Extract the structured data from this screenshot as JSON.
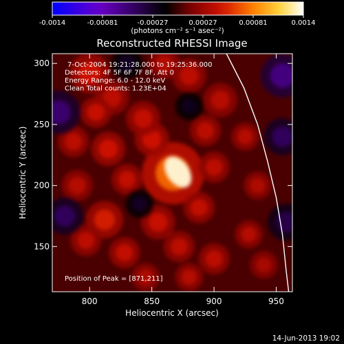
{
  "chart_data": {
    "type": "heatmap",
    "title": "Reconstructed RHESSI Image",
    "xlabel": "Heliocentric X (arcsec)",
    "ylabel": "Heliocentric Y (arcsec)",
    "xlim": [
      770,
      963
    ],
    "ylim": [
      113,
      308
    ],
    "xticks": [
      800,
      850,
      900,
      950
    ],
    "yticks": [
      150,
      200,
      250,
      300
    ],
    "colorbar": {
      "range": [
        -0.0014,
        0.0014
      ],
      "ticks": [
        "-0.0014",
        "-0.00081",
        "-0.00027",
        "0.00027",
        "0.00081",
        "0.0014"
      ],
      "unit_label": "(photons cm⁻² s⁻¹ asec⁻²)",
      "colormap": [
        "#0000ff",
        "#6a00c8",
        "#000000",
        "#7a0000",
        "#d21200",
        "#ff8000",
        "#ffd640",
        "#ffffff"
      ]
    },
    "annotations": [
      "7-Oct-2004 19:21:28.000 to 19:25:36.000",
      "Detectors: 4F 5F 6F 7F 8F, Att 0",
      "Energy Range: 6.0 - 12.0 keV",
      "Clean     Total counts: 1.23E+04"
    ],
    "peak_label": "Position of Peak = [871,211]",
    "peak_position": [
      871,
      211
    ],
    "limb_curve": [
      [
        910,
        308
      ],
      [
        924,
        280
      ],
      [
        935,
        250
      ],
      [
        943,
        220
      ],
      [
        950,
        190
      ],
      [
        955,
        160
      ],
      [
        958,
        130
      ],
      [
        960,
        113
      ]
    ],
    "blobs": [
      {
        "x": 866,
        "y": 213,
        "v": 1.0,
        "r": 10
      },
      {
        "x": 867,
        "y": 210,
        "v": 0.55,
        "r": 20
      },
      {
        "x": 850,
        "y": 238,
        "v": 0.35,
        "r": 11
      },
      {
        "x": 843,
        "y": 255,
        "v": 0.32,
        "r": 11
      },
      {
        "x": 800,
        "y": 292,
        "v": 0.35,
        "r": 13
      },
      {
        "x": 818,
        "y": 272,
        "v": 0.3,
        "r": 11
      },
      {
        "x": 805,
        "y": 260,
        "v": 0.33,
        "r": 10
      },
      {
        "x": 787,
        "y": 236,
        "v": 0.3,
        "r": 10
      },
      {
        "x": 815,
        "y": 230,
        "v": 0.35,
        "r": 11
      },
      {
        "x": 830,
        "y": 205,
        "v": 0.32,
        "r": 10
      },
      {
        "x": 812,
        "y": 172,
        "v": 0.38,
        "r": 12
      },
      {
        "x": 797,
        "y": 155,
        "v": 0.3,
        "r": 10
      },
      {
        "x": 790,
        "y": 200,
        "v": 0.28,
        "r": 10
      },
      {
        "x": 828,
        "y": 145,
        "v": 0.32,
        "r": 10
      },
      {
        "x": 855,
        "y": 170,
        "v": 0.33,
        "r": 11
      },
      {
        "x": 872,
        "y": 150,
        "v": 0.3,
        "r": 10
      },
      {
        "x": 888,
        "y": 182,
        "v": 0.32,
        "r": 10
      },
      {
        "x": 900,
        "y": 215,
        "v": 0.3,
        "r": 10
      },
      {
        "x": 893,
        "y": 245,
        "v": 0.3,
        "r": 10
      },
      {
        "x": 905,
        "y": 270,
        "v": 0.28,
        "r": 11
      },
      {
        "x": 880,
        "y": 290,
        "v": 0.3,
        "r": 11
      },
      {
        "x": 860,
        "y": 300,
        "v": 0.28,
        "r": 10
      },
      {
        "x": 925,
        "y": 240,
        "v": 0.28,
        "r": 9
      },
      {
        "x": 935,
        "y": 200,
        "v": 0.26,
        "r": 9
      },
      {
        "x": 928,
        "y": 160,
        "v": 0.28,
        "r": 9
      },
      {
        "x": 940,
        "y": 135,
        "v": 0.24,
        "r": 9
      },
      {
        "x": 900,
        "y": 140,
        "v": 0.3,
        "r": 10
      },
      {
        "x": 880,
        "y": 125,
        "v": 0.28,
        "r": 9
      },
      {
        "x": 845,
        "y": 125,
        "v": 0.26,
        "r": 9
      },
      {
        "x": 780,
        "y": 175,
        "v": -0.35,
        "r": 12
      },
      {
        "x": 775,
        "y": 260,
        "v": -0.4,
        "r": 14
      },
      {
        "x": 955,
        "y": 290,
        "v": -0.45,
        "r": 14
      },
      {
        "x": 955,
        "y": 240,
        "v": -0.35,
        "r": 12
      },
      {
        "x": 958,
        "y": 170,
        "v": -0.3,
        "r": 12
      },
      {
        "x": 830,
        "y": 300,
        "v": -0.2,
        "r": 10
      },
      {
        "x": 840,
        "y": 185,
        "v": -0.2,
        "r": 9
      },
      {
        "x": 880,
        "y": 265,
        "v": -0.18,
        "r": 9
      }
    ]
  },
  "footer": {
    "timestamp": "14-Jun-2013 19:02"
  }
}
